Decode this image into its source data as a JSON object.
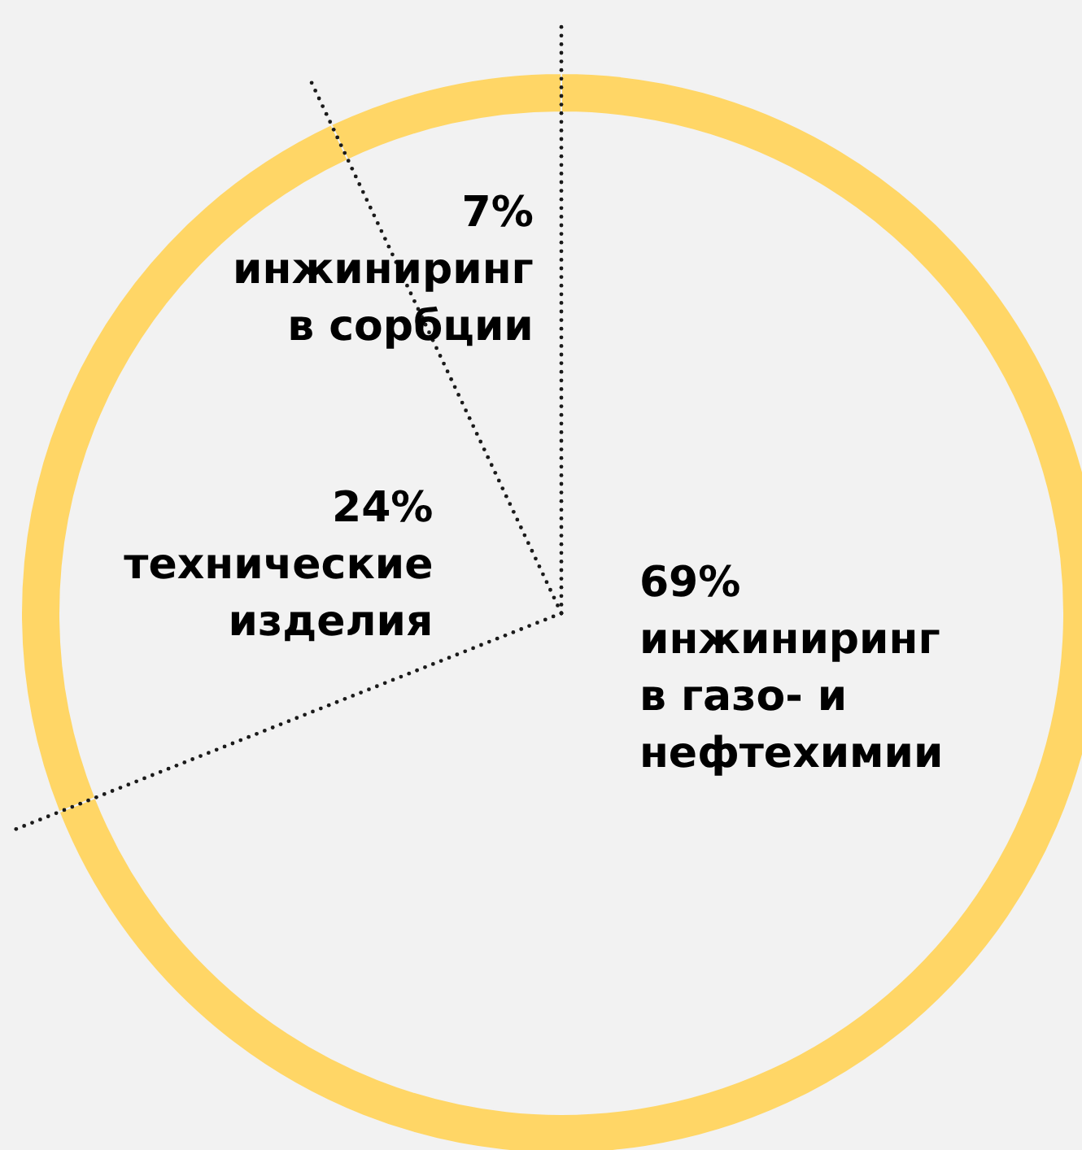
{
  "chart_data": {
    "type": "donut",
    "categories": [
      "инжиниринг в газо- и нефтехимии",
      "технические изделия",
      "инжиниринг в сорбции"
    ],
    "values": [
      69,
      24,
      7
    ],
    "colors": [
      "#ffd666",
      "#ffd666",
      "#ffd666"
    ],
    "value_labels": [
      "69%",
      "24%",
      "7%"
    ]
  }
}
